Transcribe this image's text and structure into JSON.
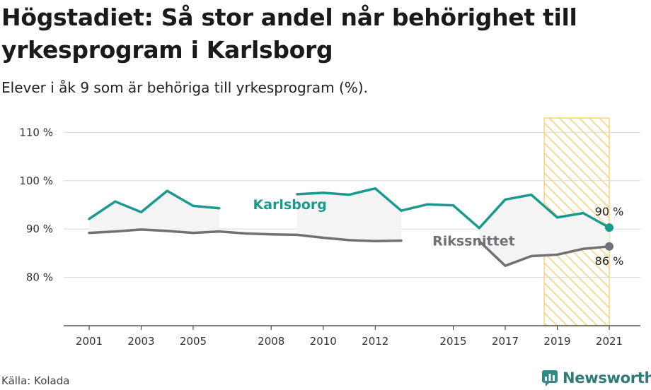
{
  "title": "Högstadiet: Så stor andel når behörighet till yrkesprogram i Karlsborg",
  "subtitle": "Elever i åk 9 som är behöriga till yrkesprogram (%).",
  "source": "Källa: Kolada",
  "brand": {
    "name": "Newsworthy",
    "icon": "newsworthy-logo-icon",
    "color": "#2e8c88"
  },
  "chart_data": {
    "type": "line",
    "x": [
      2001,
      2002,
      2003,
      2004,
      2005,
      2006,
      2007,
      2008,
      2009,
      2010,
      2011,
      2012,
      2013,
      2014,
      2015,
      2016,
      2017,
      2018,
      2019,
      2020,
      2021
    ],
    "x_ticks": [
      "2001",
      "2003",
      "2005",
      "2008",
      "2010",
      "2012",
      "2015",
      "2017",
      "2019",
      "2021"
    ],
    "ylim": [
      70,
      114
    ],
    "y_ticks": [
      {
        "value": 80,
        "label": "80 %"
      },
      {
        "value": 90,
        "label": "90 %"
      },
      {
        "value": 100,
        "label": "100 %"
      },
      {
        "value": 110,
        "label": "110 %"
      }
    ],
    "grid": true,
    "highlight_range": [
      2018.5,
      2021
    ],
    "series": [
      {
        "name": "Karlsborg",
        "color": "#1a9a8f",
        "values": [
          92.1,
          95.7,
          93.5,
          97.9,
          94.8,
          94.3,
          null,
          null,
          97.2,
          97.5,
          97.1,
          98.4,
          93.8,
          95.1,
          94.9,
          90.2,
          96.1,
          97.1,
          92.4,
          93.3,
          90.3
        ],
        "label_at": 2007.3,
        "end_label": "90 %"
      },
      {
        "name": "Rikssnittet",
        "color": "#707075",
        "values": [
          89.2,
          89.5,
          89.9,
          89.6,
          89.2,
          89.5,
          89.1,
          88.9,
          88.8,
          88.2,
          87.7,
          87.5,
          87.6,
          null,
          null,
          87.5,
          82.4,
          84.4,
          84.7,
          85.9,
          86.4
        ],
        "label_at": 2014.2,
        "end_label": "86 %"
      }
    ]
  }
}
